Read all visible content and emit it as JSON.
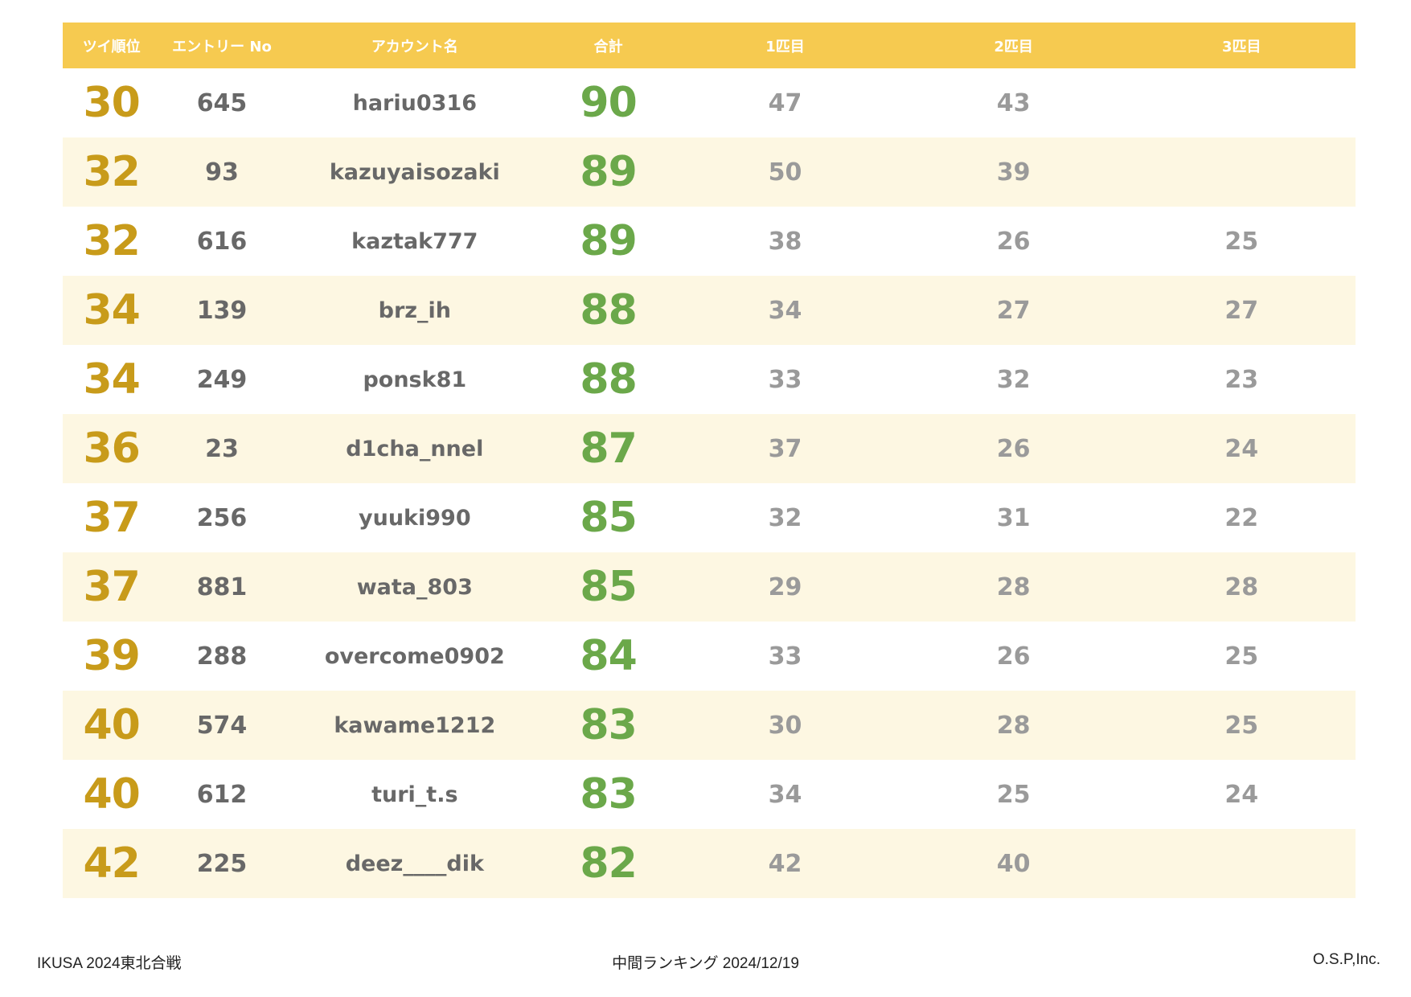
{
  "header": {
    "rank": "ツイ順位",
    "entry": "エントリー No",
    "account": "アカウント名",
    "total": "合計",
    "fish1": "1匹目",
    "fish2": "2匹目",
    "fish3": "3匹目"
  },
  "rows": [
    {
      "rank": "30",
      "entry": "645",
      "account": "hariu0316",
      "total": "90",
      "fish1": "47",
      "fish2": "43",
      "fish3": ""
    },
    {
      "rank": "32",
      "entry": "93",
      "account": "kazuyaisozaki",
      "total": "89",
      "fish1": "50",
      "fish2": "39",
      "fish3": ""
    },
    {
      "rank": "32",
      "entry": "616",
      "account": "kaztak777",
      "total": "89",
      "fish1": "38",
      "fish2": "26",
      "fish3": "25"
    },
    {
      "rank": "34",
      "entry": "139",
      "account": "brz_ih",
      "total": "88",
      "fish1": "34",
      "fish2": "27",
      "fish3": "27"
    },
    {
      "rank": "34",
      "entry": "249",
      "account": "ponsk81",
      "total": "88",
      "fish1": "33",
      "fish2": "32",
      "fish3": "23"
    },
    {
      "rank": "36",
      "entry": "23",
      "account": "d1cha_nnel",
      "total": "87",
      "fish1": "37",
      "fish2": "26",
      "fish3": "24"
    },
    {
      "rank": "37",
      "entry": "256",
      "account": "yuuki990",
      "total": "85",
      "fish1": "32",
      "fish2": "31",
      "fish3": "22"
    },
    {
      "rank": "37",
      "entry": "881",
      "account": "wata_803",
      "total": "85",
      "fish1": "29",
      "fish2": "28",
      "fish3": "28"
    },
    {
      "rank": "39",
      "entry": "288",
      "account": "overcome0902",
      "total": "84",
      "fish1": "33",
      "fish2": "26",
      "fish3": "25"
    },
    {
      "rank": "40",
      "entry": "574",
      "account": "kawame1212",
      "total": "83",
      "fish1": "30",
      "fish2": "28",
      "fish3": "25"
    },
    {
      "rank": "40",
      "entry": "612",
      "account": "turi_t.s",
      "total": "83",
      "fish1": "34",
      "fish2": "25",
      "fish3": "24"
    },
    {
      "rank": "42",
      "entry": "225",
      "account": "deez____dik",
      "total": "82",
      "fish1": "42",
      "fish2": "40",
      "fish3": ""
    }
  ],
  "footer": {
    "left": "IKUSA 2024東北合戦",
    "center": "中間ランキング 2024/12/19",
    "right": "O.S.P,Inc."
  },
  "colors": {
    "header_bg": "#F6CA50",
    "rank": "#C89B1A",
    "total": "#6BA84A",
    "alt_row": "#FDF7E2"
  }
}
